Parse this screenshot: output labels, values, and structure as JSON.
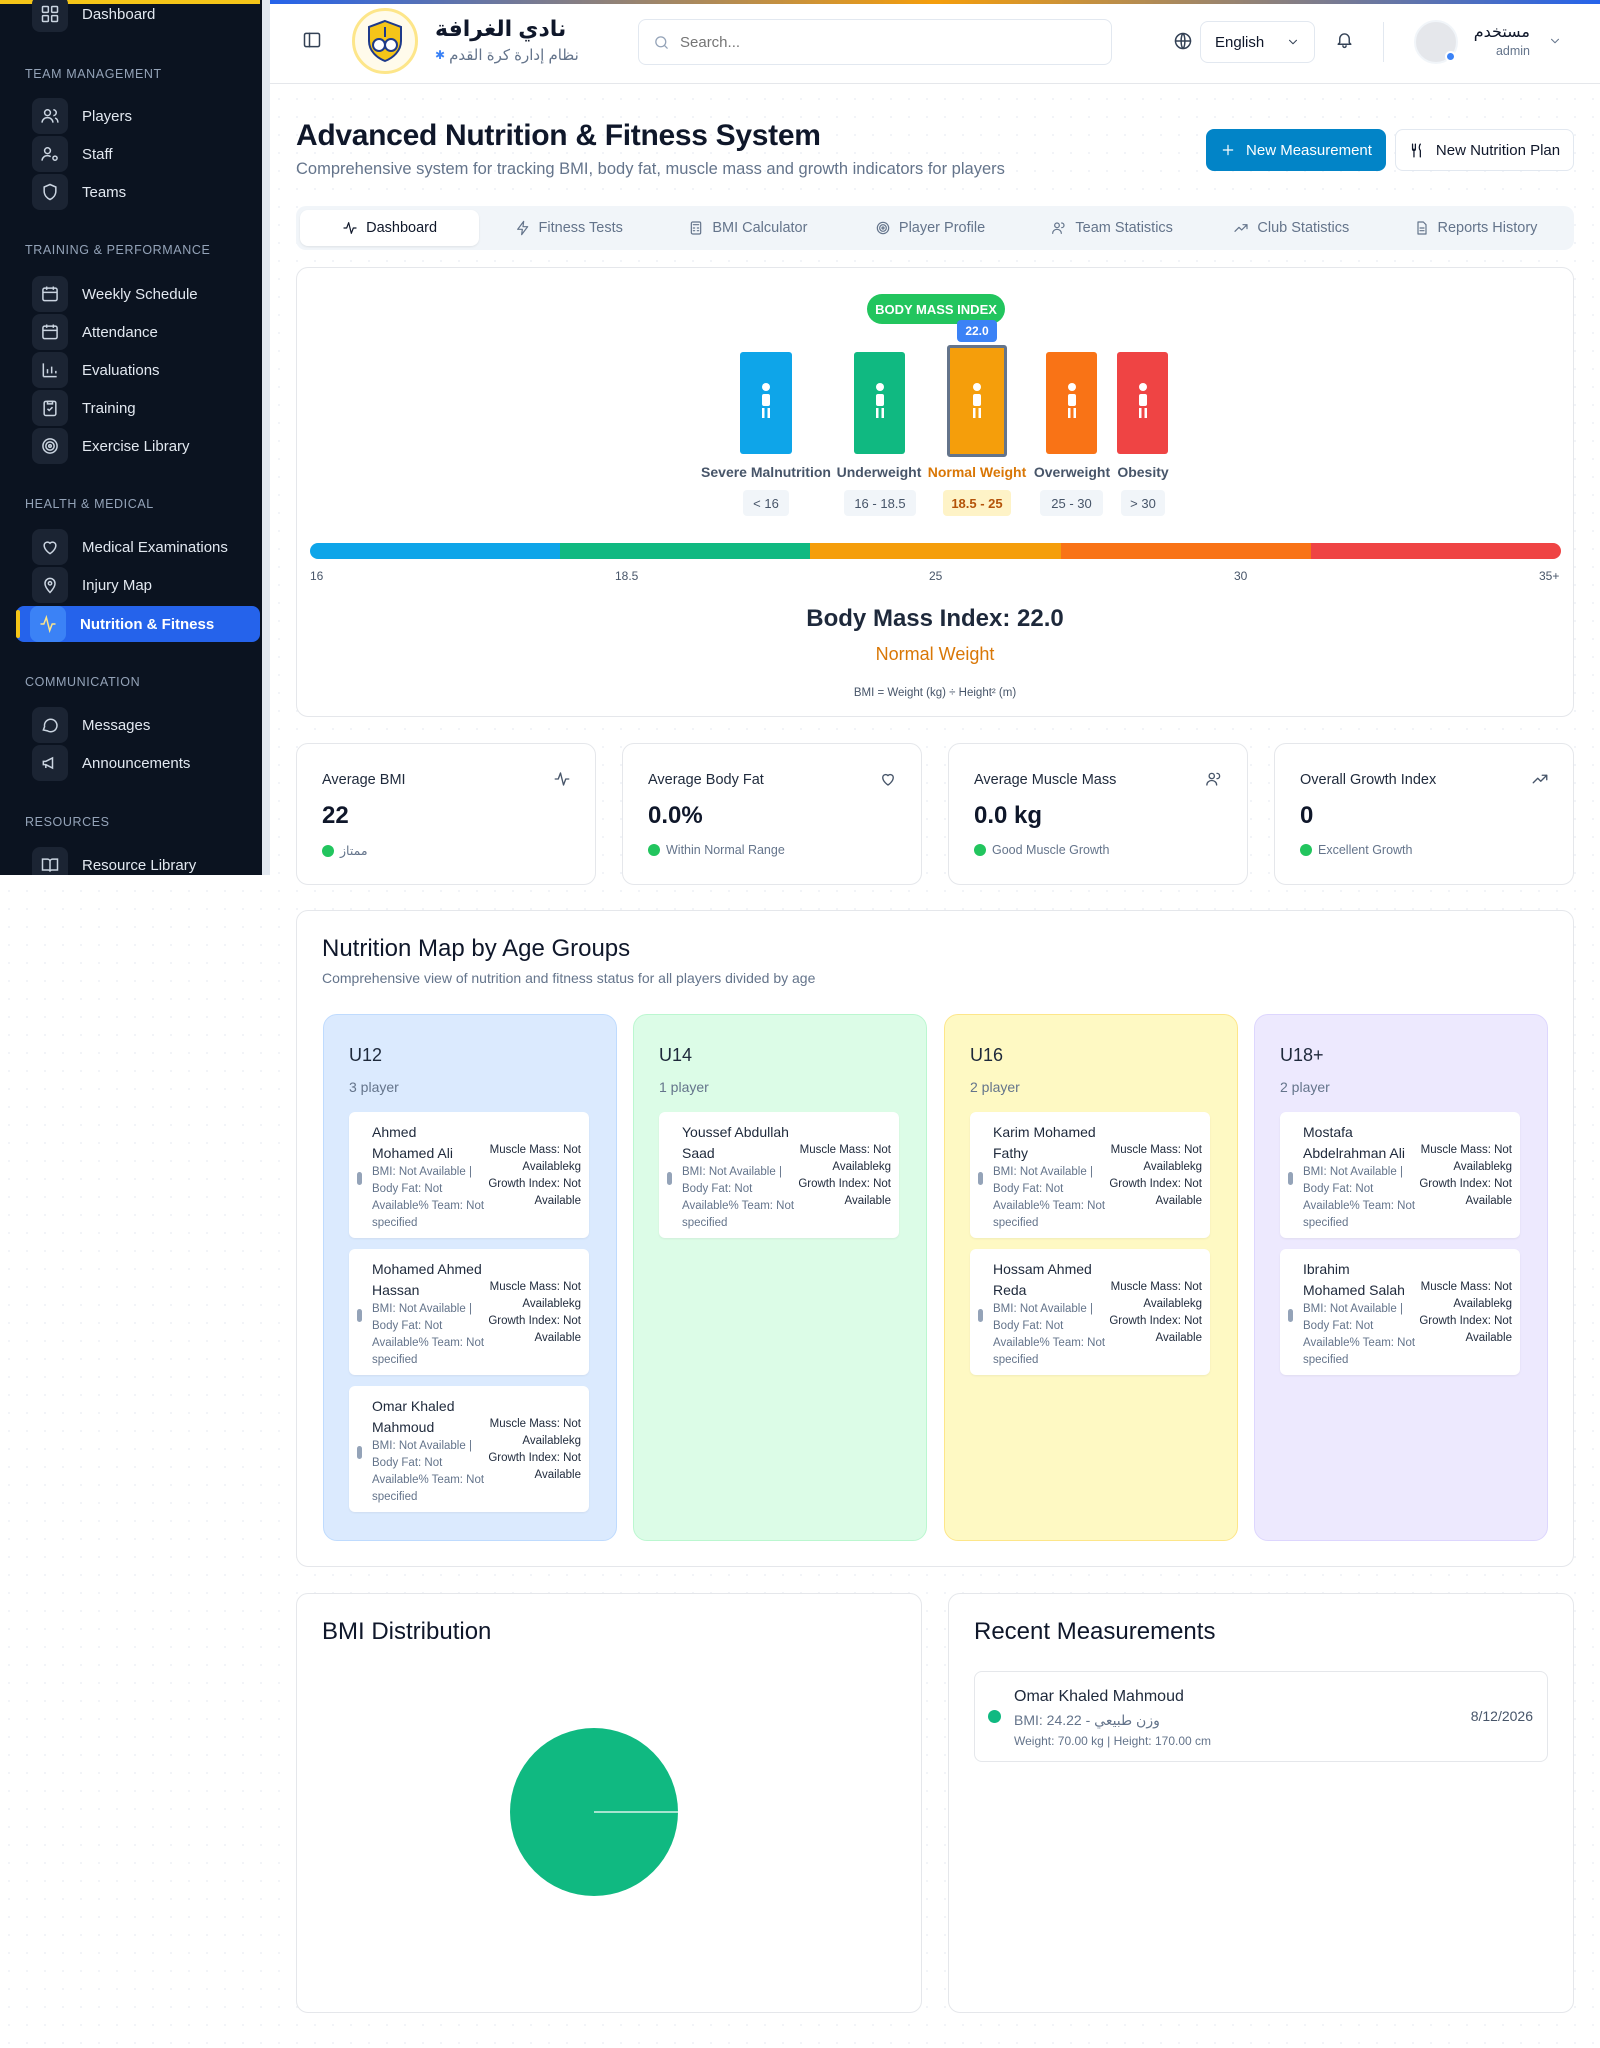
{
  "sidebar": {
    "top_item": "Dashboard",
    "sections": [
      {
        "title": "TEAM MANAGEMENT",
        "items": [
          "Players",
          "Staff",
          "Teams"
        ]
      },
      {
        "title": "TRAINING & PERFORMANCE",
        "items": [
          "Weekly Schedule",
          "Attendance",
          "Evaluations",
          "Training",
          "Exercise Library"
        ]
      },
      {
        "title": "HEALTH & MEDICAL",
        "items": [
          "Medical Examinations",
          "Injury Map",
          "Nutrition & Fitness"
        ]
      },
      {
        "title": "COMMUNICATION",
        "items": [
          "Messages",
          "Announcements"
        ]
      },
      {
        "title": "RESOURCES",
        "items": [
          "Resource Library"
        ]
      }
    ]
  },
  "header": {
    "club_name": "نادي الغرافة",
    "club_subtitle": "نظام إدارة كرة القدم",
    "search_placeholder": "Search...",
    "language": "English",
    "user_name": "مستخدم",
    "user_role": "admin"
  },
  "page": {
    "title": "Advanced Nutrition & Fitness System",
    "subtitle": "Comprehensive system for tracking BMI, body fat, muscle mass and growth indicators for players",
    "btn_new_measurement": "New Measurement",
    "btn_new_plan": "New Nutrition Plan"
  },
  "tabs": [
    "Dashboard",
    "Fitness Tests",
    "BMI Calculator",
    "Player Profile",
    "Team Statistics",
    "Club Statistics",
    "Reports History"
  ],
  "bmi": {
    "badge": "BODY MASS INDEX",
    "marker": "22.0",
    "categories": [
      {
        "name": "Severe Malnutrition",
        "range": "< 16",
        "color": "#0ea5e9"
      },
      {
        "name": "Underweight",
        "range": "16 - 18.5",
        "color": "#10b981"
      },
      {
        "name": "Normal Weight",
        "range": "18.5 - 25",
        "color": "#f59e0b"
      },
      {
        "name": "Overweight",
        "range": "25 - 30",
        "color": "#f97316"
      },
      {
        "name": "Obesity",
        "range": "> 30",
        "color": "#ef4444"
      }
    ],
    "scale_ticks": [
      "16",
      "18.5",
      "25",
      "30",
      "35+"
    ],
    "result_title": "Body Mass Index: 22.0",
    "result_label": "Normal Weight",
    "formula": "BMI = Weight (kg) ÷ Height² (m)"
  },
  "stats": [
    {
      "label": "Average BMI",
      "value": "22",
      "sub": "ممتاز",
      "icon": "activity-icon"
    },
    {
      "label": "Average Body Fat",
      "value": "0.0%",
      "sub": "Within Normal Range",
      "icon": "heart-icon"
    },
    {
      "label": "Average Muscle Mass",
      "value": "0.0 kg",
      "sub": "Good Muscle Growth",
      "icon": "users-icon"
    },
    {
      "label": "Overall Growth Index",
      "value": "0",
      "sub": "Excellent Growth",
      "icon": "trending-up-icon"
    }
  ],
  "nutrition_map": {
    "title": "Nutrition Map by Age Groups",
    "subtitle": "Comprehensive view of nutrition and fitness status for all players divided by age",
    "groups": [
      {
        "name": "U12",
        "count": "3 player",
        "bg": "#dbeafe",
        "border": "#bfdbfe",
        "players": [
          {
            "name": "Ahmed Mohamed Ali",
            "details": "BMI: Not Available | Body Fat: Not Available% Team: Not specified",
            "metrics": "Muscle Mass: Not Availablekg Growth Index: Not Available"
          },
          {
            "name": "Mohamed Ahmed Hassan",
            "details": "BMI: Not Available | Body Fat: Not Available% Team: Not specified",
            "metrics": "Muscle Mass: Not Availablekg Growth Index: Not Available"
          },
          {
            "name": "Omar Khaled Mahmoud",
            "details": "BMI: Not Available | Body Fat: Not Available% Team: Not specified",
            "metrics": "Muscle Mass: Not Availablekg Growth Index: Not Available"
          }
        ]
      },
      {
        "name": "U14",
        "count": "1 player",
        "bg": "#dcfce7",
        "border": "#bbf7d0",
        "players": [
          {
            "name": "Youssef Abdullah Saad",
            "details": "BMI: Not Available | Body Fat: Not Available% Team: Not specified",
            "metrics": "Muscle Mass: Not Availablekg Growth Index: Not Available"
          }
        ]
      },
      {
        "name": "U16",
        "count": "2 player",
        "bg": "#fef9c3",
        "border": "#fde68a",
        "players": [
          {
            "name": "Karim Mohamed Fathy",
            "details": "BMI: Not Available | Body Fat: Not Available% Team: Not specified",
            "metrics": "Muscle Mass: Not Availablekg Growth Index: Not Available"
          },
          {
            "name": "Hossam Ahmed Reda",
            "details": "BMI: Not Available | Body Fat: Not Available% Team: Not specified",
            "metrics": "Muscle Mass: Not Availablekg Growth Index: Not Available"
          }
        ]
      },
      {
        "name": "U18+",
        "count": "2 player",
        "bg": "#ede9fe",
        "border": "#ddd6fe",
        "players": [
          {
            "name": "Mostafa Abdelrahman Ali",
            "details": "BMI: Not Available | Body Fat: Not Available% Team: Not specified",
            "metrics": "Muscle Mass: Not Availablekg Growth Index: Not Available"
          },
          {
            "name": "Ibrahim Mohamed Salah",
            "details": "BMI: Not Available | Body Fat: Not Available% Team: Not specified",
            "metrics": "Muscle Mass: Not Availablekg Growth Index: Not Available"
          }
        ]
      }
    ]
  },
  "bmi_distribution": {
    "title": "BMI Distribution",
    "slice_color": "#10b981"
  },
  "chart_data": {
    "type": "pie",
    "title": "BMI Distribution",
    "categories": [
      "وزن طبيعي"
    ],
    "values": [
      100
    ],
    "colors": [
      "#10b981"
    ]
  },
  "recent": {
    "title": "Recent Measurements",
    "items": [
      {
        "name": "Omar Khaled Mahmoud",
        "bmi_line": "BMI: 24.22 - وزن طبيعي",
        "details": "Weight: 70.00 kg | Height: 170.00 cm",
        "date": "8/12/2026"
      }
    ]
  }
}
